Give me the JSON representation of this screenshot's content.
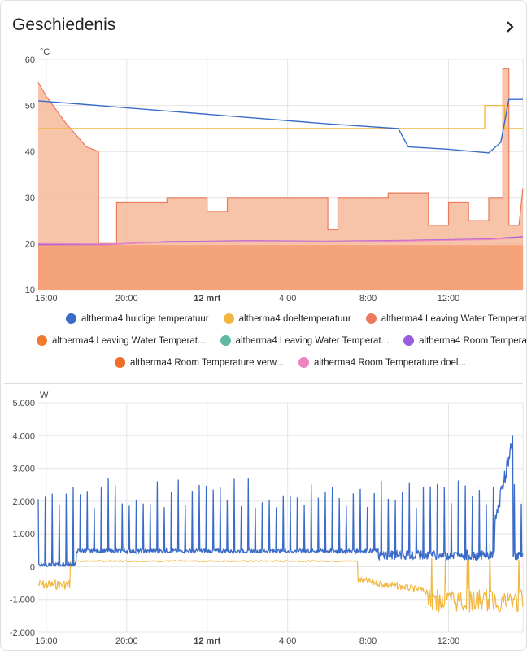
{
  "card": {
    "title": "Geschiedenis",
    "more_icon": "chevron-right-icon"
  },
  "charts": [
    {
      "type": "area",
      "unit": "°C",
      "y_ticks": [
        "60",
        "50",
        "40",
        "30",
        "20",
        "10"
      ],
      "y_range": [
        10,
        60
      ],
      "x_ticks": [
        "16:00",
        "20:00",
        "12 mrt",
        "4:00",
        "8:00",
        "12:00"
      ],
      "x_tick_hours": [
        16,
        20,
        24,
        28,
        32,
        36
      ],
      "x_range_hours": [
        15.6,
        39.7
      ],
      "legend": [
        {
          "label": "altherma4 huidige temperatuur",
          "color": "#3b6bc9"
        },
        {
          "label": "altherma4 doeltemperatuur",
          "color": "#f0b63f"
        },
        {
          "label": "altherma4 Leaving Water Temperat...",
          "color": "#ea7a5c"
        },
        {
          "label": "altherma4 Leaving Water Temperat...",
          "color": "#ee7a30"
        },
        {
          "label": "altherma4 Leaving Water Temperat...",
          "color": "#5fb8a3"
        },
        {
          "label": "altherma4 Room Temperature huid...",
          "color": "#9b5ce0"
        },
        {
          "label": "altherma4 Room Temperature verw...",
          "color": "#ef6f2a"
        },
        {
          "label": "altherma4 Room Temperature doel...",
          "color": "#ec84c1"
        }
      ],
      "chart_data": {
        "type": "area",
        "series": [
          {
            "name": "altherma4 huidige temperatuur",
            "color": "#3b6bc9",
            "x": [
              15.6,
              18,
              22,
              26,
              30,
              33.5,
              34,
              36,
              38,
              38.6,
              39,
              39.7
            ],
            "y": [
              51,
              50.2,
              48.8,
              47.4,
              46,
              45,
              41,
              40.5,
              39.7,
              42,
              51.3,
              51.3
            ]
          },
          {
            "name": "altherma4 doeltemperatuur",
            "color": "#f0b63f",
            "x": [
              15.6,
              37.8,
              37.8,
              38.8,
              38.8,
              39.7
            ],
            "y": [
              45,
              45,
              50,
              50,
              45,
              45
            ]
          },
          {
            "name": "altherma4 Leaving Water Temperat...",
            "color": "#ea7a5c",
            "x": [
              15.6,
              16,
              17,
              18,
              18.6,
              18.6,
              19,
              19.5,
              19.5,
              22,
              22,
              24,
              24,
              25,
              25,
              26,
              26,
              30,
              30,
              30.5,
              30.5,
              33,
              33,
              35,
              35,
              36,
              36,
              37,
              37,
              38,
              38,
              38.7,
              38.7,
              39,
              39,
              39.5,
              39.7
            ],
            "y": [
              55,
              52,
              46,
              41,
              40,
              20,
              20,
              20,
              29,
              29,
              30,
              30,
              27,
              27,
              30,
              30,
              30,
              30,
              23,
              23,
              30,
              30,
              31,
              31,
              24,
              24,
              29,
              29,
              25,
              25,
              30,
              30,
              58,
              58,
              24,
              24,
              32
            ]
          },
          {
            "name": "altherma4 Room Temperature huid...",
            "color": "#9b5ce0",
            "x": [
              15.6,
              19,
              22,
              26,
              30,
              34,
              38,
              39.7
            ],
            "y": [
              19.8,
              19.8,
              20.4,
              20.6,
              20.5,
              20.7,
              21,
              21.5
            ]
          },
          {
            "name": "altherma4 Room Temperature verw...",
            "color": "#ef6f2a",
            "x": [
              15.6,
              39.7
            ],
            "y": [
              19.7,
              19.7
            ]
          },
          {
            "name": "altherma4 Room Temperature doel...",
            "color": "#ec84c1",
            "x": [
              15.6,
              19,
              22,
              26,
              30,
              34,
              38,
              39.7
            ],
            "y": [
              20,
              19.9,
              20.3,
              20.5,
              20.4,
              20.6,
              20.9,
              21.3
            ]
          }
        ]
      }
    },
    {
      "type": "line",
      "unit": "W",
      "y_ticks": [
        "5.000",
        "4.000",
        "3.000",
        "2.000",
        "1.000",
        "0",
        "-1.000",
        "-2.000"
      ],
      "y_range": [
        -2000,
        5000
      ],
      "x_ticks": [
        "16:00",
        "20:00",
        "12 mrt",
        "4:00",
        "8:00",
        "12:00"
      ],
      "x_tick_hours": [
        16,
        20,
        24,
        28,
        32,
        36
      ],
      "x_range_hours": [
        15.6,
        39.7
      ],
      "chart_data": {
        "type": "line",
        "series": [
          {
            "color": "#3b6bc9",
            "baseline": 300,
            "spike_count": 70,
            "spike_height": 2100
          },
          {
            "color": "#f0b63f",
            "baseline": 150,
            "dip": -700
          }
        ]
      }
    }
  ]
}
